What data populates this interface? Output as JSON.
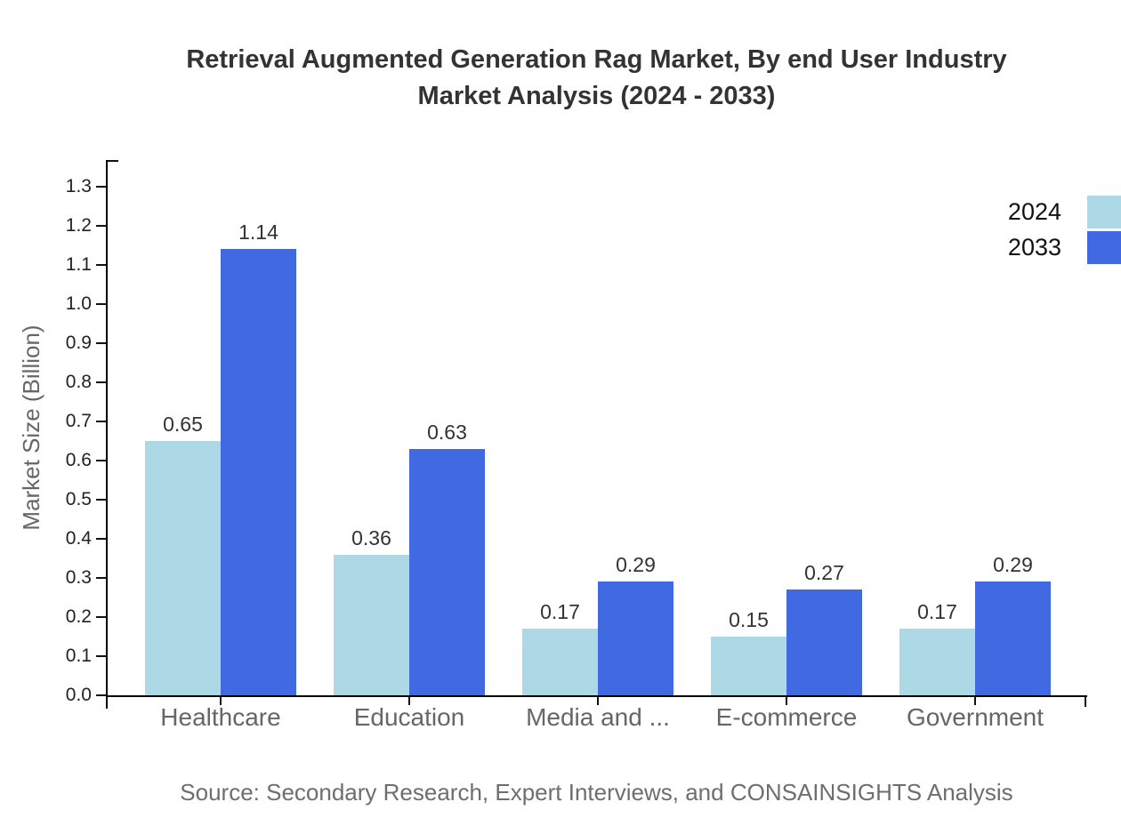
{
  "title": {
    "line1": "Retrieval Augmented Generation Rag Market, By end User Industry",
    "line2": "Market Analysis (2024 - 2033)"
  },
  "y_axis": {
    "label": "Market Size (Billion)",
    "tick_labels": [
      "0.0",
      "0.1",
      "0.2",
      "0.3",
      "0.4",
      "0.5",
      "0.6",
      "0.7",
      "0.8",
      "0.9",
      "1.0",
      "1.1",
      "1.2",
      "1.3"
    ]
  },
  "legend": {
    "items": [
      {
        "label": "2024",
        "color": "#ADD8E6"
      },
      {
        "label": "2033",
        "color": "#4169E1"
      }
    ]
  },
  "source": "Source: Secondary Research, Expert Interviews, and CONSAINSIGHTS Analysis",
  "chart_data": {
    "type": "bar",
    "title": "Retrieval Augmented Generation Rag Market, By end User Industry Market Analysis (2024 - 2033)",
    "categories": [
      "Healthcare",
      "Education",
      "Media and ...",
      "E-commerce",
      "Government"
    ],
    "series": [
      {
        "name": "2024",
        "color": "#ADD8E6",
        "values": [
          0.65,
          0.36,
          0.17,
          0.15,
          0.17
        ]
      },
      {
        "name": "2033",
        "color": "#4169E1",
        "values": [
          1.14,
          0.63,
          0.29,
          0.27,
          0.29
        ]
      }
    ],
    "xlabel": "",
    "ylabel": "Market Size (Billion)",
    "ylim": [
      0.0,
      1.3
    ],
    "ytick_step": 0.1,
    "grid": false,
    "value_labels": true,
    "value_label_decimals": 2,
    "legend_position": "top-right",
    "axis_color": "#000000",
    "tick_label_color": "#222222",
    "category_label_color": "#666666",
    "title_color": "#333333",
    "source_color": "#6e6e6e"
  }
}
